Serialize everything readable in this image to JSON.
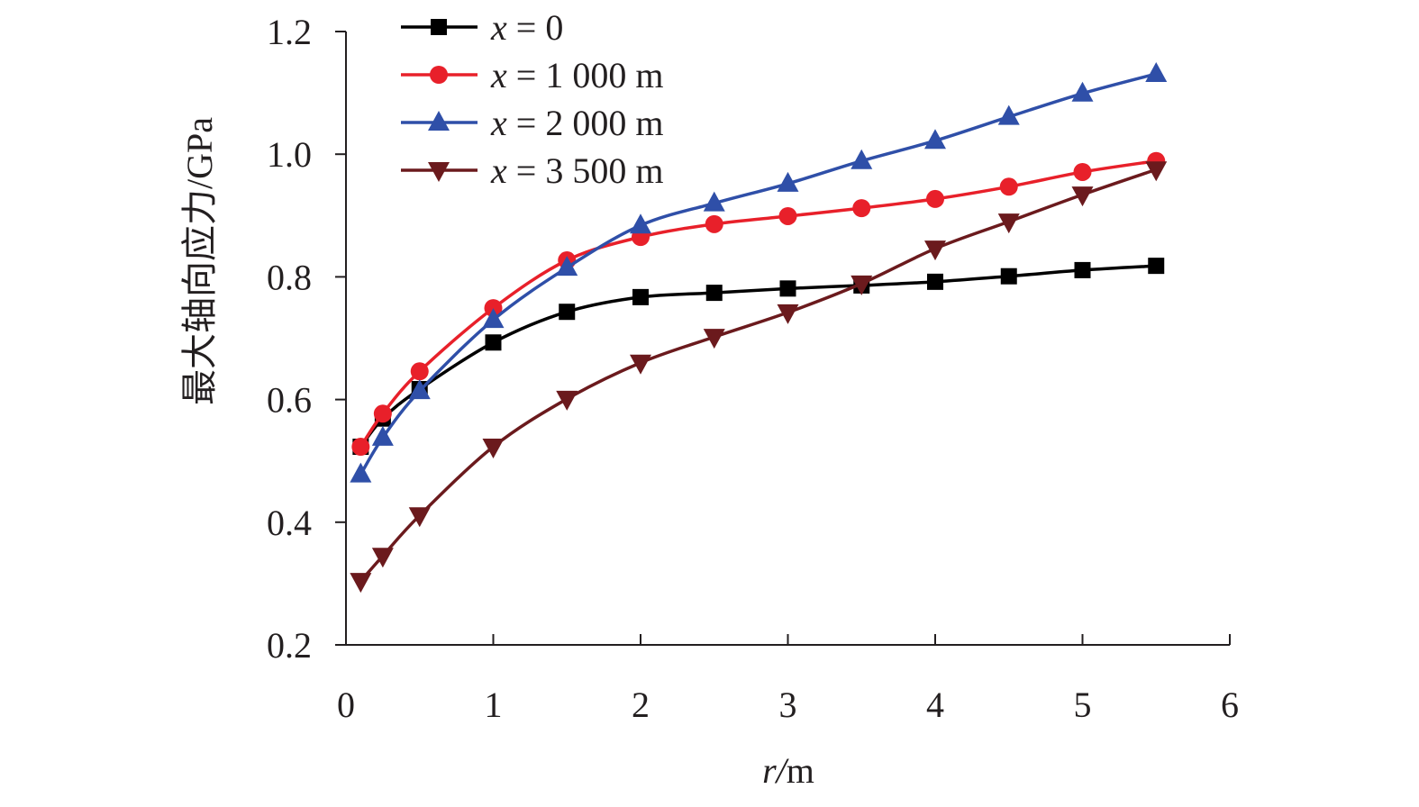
{
  "chart_data": {
    "type": "line",
    "title": "",
    "xlabel": "r/m",
    "xlabel_italic": "r",
    "xlabel_unit": "/m",
    "ylabel": "最大轴向应力/GPa",
    "xlim": [
      0,
      6
    ],
    "ylim": [
      0.2,
      1.2
    ],
    "xticks": [
      "0",
      "1",
      "2",
      "3",
      "4",
      "5",
      "6"
    ],
    "yticks": [
      "0.2",
      "0.4",
      "0.6",
      "0.8",
      "1.0",
      "1.2"
    ],
    "grid": false,
    "legend_position": "top-left",
    "x": [
      0.1,
      0.25,
      0.5,
      1,
      1.5,
      2,
      2.5,
      3,
      3.5,
      4,
      4.5,
      5,
      5.5
    ],
    "series": [
      {
        "name": "x = 0",
        "label_var": "x",
        "label_rest": " = 0",
        "color": "#000000",
        "marker": "square",
        "values": [
          0.523,
          0.569,
          0.617,
          0.693,
          0.743,
          0.767,
          0.774,
          0.781,
          0.786,
          0.792,
          0.801,
          0.811,
          0.818
        ]
      },
      {
        "name": "x = 1 000 m",
        "label_var": "x",
        "label_rest": " = 1 000 m",
        "color": "#e8202a",
        "marker": "circle",
        "values": [
          0.523,
          0.577,
          0.646,
          0.749,
          0.827,
          0.865,
          0.886,
          0.899,
          0.912,
          0.927,
          0.947,
          0.971,
          0.989
        ]
      },
      {
        "name": "x = 2 000 m",
        "label_var": "x",
        "label_rest": " = 2 000 m",
        "color": "#2f4fa8",
        "marker": "triangle-up",
        "values": [
          0.478,
          0.538,
          0.614,
          0.73,
          0.815,
          0.884,
          0.92,
          0.952,
          0.989,
          1.022,
          1.061,
          1.099,
          1.131
        ]
      },
      {
        "name": "x = 3 500 m",
        "label_var": "x",
        "label_rest": " = 3 500 m",
        "color": "#6b1a1d",
        "marker": "triangle-down",
        "values": [
          0.304,
          0.345,
          0.411,
          0.523,
          0.601,
          0.66,
          0.702,
          0.742,
          0.789,
          0.846,
          0.89,
          0.934,
          0.975
        ]
      }
    ]
  }
}
